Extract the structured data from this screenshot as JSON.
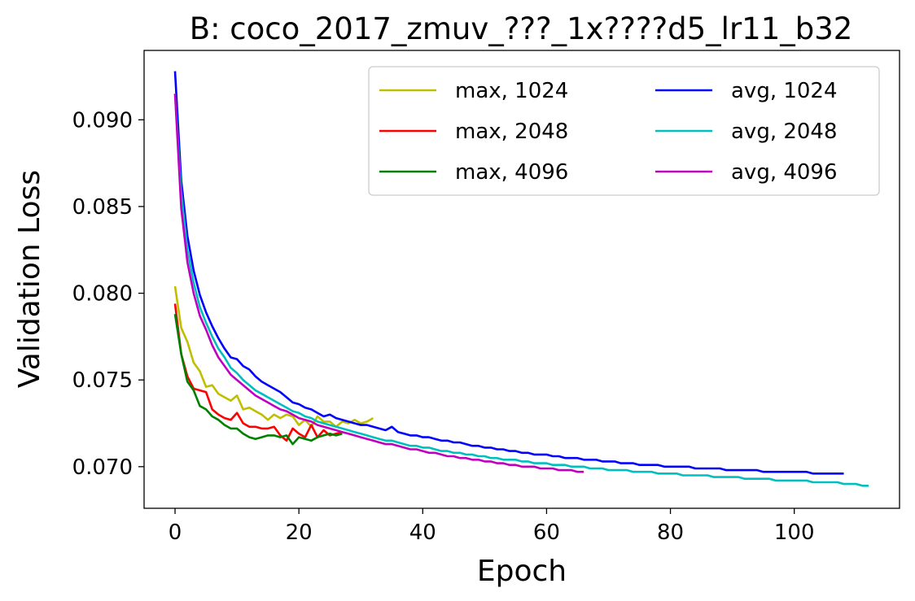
{
  "chart_data": {
    "type": "line",
    "title": "B:  coco_2017_zmuv_???_1x????d5_lr11_b32",
    "xlabel": "Epoch",
    "ylabel": "Validation Loss",
    "xlim": [
      -5,
      117
    ],
    "ylim": [
      0.0676,
      0.094
    ],
    "x_ticks": [
      0,
      20,
      40,
      60,
      80,
      100
    ],
    "x_tick_labels": [
      "0",
      "20",
      "40",
      "60",
      "80",
      "100"
    ],
    "y_ticks": [
      0.07,
      0.075,
      0.08,
      0.085,
      0.09
    ],
    "y_tick_labels": [
      "0.070",
      "0.075",
      "0.080",
      "0.085",
      "0.090"
    ],
    "grid": false,
    "legend": {
      "position": "top-right",
      "columns": 2
    },
    "series": [
      {
        "name": "max, 1024",
        "color": "#bfbf00",
        "x_start": 0,
        "values": [
          0.0804,
          0.078,
          0.0772,
          0.076,
          0.0755,
          0.0746,
          0.0747,
          0.0742,
          0.074,
          0.0738,
          0.0741,
          0.0733,
          0.0734,
          0.0732,
          0.073,
          0.0727,
          0.073,
          0.0728,
          0.073,
          0.0729,
          0.0724,
          0.0727,
          0.0723,
          0.0729,
          0.0726,
          0.0726,
          0.0723,
          0.0726,
          0.0725,
          0.0727,
          0.0725,
          0.0726,
          0.0728
        ]
      },
      {
        "name": "max, 2048",
        "color": "#ff0000",
        "x_start": 0,
        "values": [
          0.0794,
          0.0765,
          0.0752,
          0.0745,
          0.0744,
          0.0743,
          0.0733,
          0.073,
          0.0728,
          0.0727,
          0.0731,
          0.0725,
          0.0723,
          0.0723,
          0.0722,
          0.0722,
          0.0723,
          0.0718,
          0.0715,
          0.0722,
          0.0719,
          0.0717,
          0.0724,
          0.0717,
          0.0721,
          0.0718,
          0.0719,
          0.072
        ]
      },
      {
        "name": "max, 4096",
        "color": "#008000",
        "x_start": 0,
        "values": [
          0.0788,
          0.0765,
          0.0749,
          0.0744,
          0.0735,
          0.0733,
          0.0729,
          0.0727,
          0.0724,
          0.0722,
          0.0722,
          0.0719,
          0.0717,
          0.0716,
          0.0717,
          0.0718,
          0.0718,
          0.0717,
          0.0718,
          0.0713,
          0.0717,
          0.0716,
          0.0715,
          0.0717,
          0.0718,
          0.0719,
          0.0718,
          0.0719
        ]
      },
      {
        "name": "avg, 1024",
        "color": "#0000ff",
        "x_start": 0,
        "values": [
          0.0928,
          0.0865,
          0.0833,
          0.0813,
          0.0799,
          0.0789,
          0.0781,
          0.0774,
          0.0768,
          0.0763,
          0.0762,
          0.0758,
          0.0756,
          0.0752,
          0.0749,
          0.0747,
          0.0745,
          0.0743,
          0.074,
          0.0737,
          0.0736,
          0.0734,
          0.0733,
          0.0731,
          0.0729,
          0.073,
          0.0728,
          0.0727,
          0.0726,
          0.0725,
          0.0724,
          0.0724,
          0.0723,
          0.0722,
          0.0721,
          0.0723,
          0.072,
          0.0719,
          0.0718,
          0.0718,
          0.0717,
          0.0717,
          0.0716,
          0.0715,
          0.0715,
          0.0714,
          0.0714,
          0.0713,
          0.0712,
          0.0712,
          0.0711,
          0.0711,
          0.071,
          0.071,
          0.0709,
          0.0709,
          0.0708,
          0.0708,
          0.0707,
          0.0707,
          0.0707,
          0.0706,
          0.0706,
          0.0705,
          0.0705,
          0.0705,
          0.0704,
          0.0704,
          0.0704,
          0.0703,
          0.0703,
          0.0703,
          0.0702,
          0.0702,
          0.0702,
          0.0701,
          0.0701,
          0.0701,
          0.0701,
          0.07,
          0.07,
          0.07,
          0.07,
          0.07,
          0.0699,
          0.0699,
          0.0699,
          0.0699,
          0.0699,
          0.0698,
          0.0698,
          0.0698,
          0.0698,
          0.0698,
          0.0698,
          0.0697,
          0.0697,
          0.0697,
          0.0697,
          0.0697,
          0.0697,
          0.0697,
          0.0697,
          0.0696,
          0.0696,
          0.0696,
          0.0696,
          0.0696,
          0.0696
        ]
      },
      {
        "name": "avg, 2048",
        "color": "#00bfbf",
        "x_start": 0,
        "values": [
          0.0915,
          0.0858,
          0.0825,
          0.0806,
          0.0792,
          0.0783,
          0.0775,
          0.0768,
          0.0763,
          0.0757,
          0.0754,
          0.075,
          0.0747,
          0.0744,
          0.0742,
          0.074,
          0.0738,
          0.0736,
          0.0734,
          0.0732,
          0.0731,
          0.0729,
          0.0728,
          0.0726,
          0.0725,
          0.0724,
          0.0723,
          0.0722,
          0.0721,
          0.072,
          0.0719,
          0.0718,
          0.0717,
          0.0716,
          0.0715,
          0.0715,
          0.0714,
          0.0713,
          0.0712,
          0.0712,
          0.0711,
          0.0711,
          0.071,
          0.0709,
          0.0709,
          0.0708,
          0.0708,
          0.0707,
          0.0707,
          0.0706,
          0.0706,
          0.0705,
          0.0705,
          0.0704,
          0.0704,
          0.0704,
          0.0703,
          0.0703,
          0.0702,
          0.0702,
          0.0702,
          0.0701,
          0.0701,
          0.0701,
          0.07,
          0.07,
          0.07,
          0.0699,
          0.0699,
          0.0699,
          0.0698,
          0.0698,
          0.0698,
          0.0698,
          0.0697,
          0.0697,
          0.0697,
          0.0697,
          0.0696,
          0.0696,
          0.0696,
          0.0696,
          0.0695,
          0.0695,
          0.0695,
          0.0695,
          0.0695,
          0.0694,
          0.0694,
          0.0694,
          0.0694,
          0.0694,
          0.0693,
          0.0693,
          0.0693,
          0.0693,
          0.0693,
          0.0692,
          0.0692,
          0.0692,
          0.0692,
          0.0692,
          0.0692,
          0.0691,
          0.0691,
          0.0691,
          0.0691,
          0.0691,
          0.069,
          0.069,
          0.069,
          0.0689,
          0.0689
        ]
      },
      {
        "name": "avg, 4096",
        "color": "#bf00bf",
        "x_start": 0,
        "values": [
          0.0915,
          0.0849,
          0.0818,
          0.08,
          0.0787,
          0.0779,
          0.077,
          0.0763,
          0.0758,
          0.0753,
          0.075,
          0.0747,
          0.0744,
          0.0741,
          0.0739,
          0.0737,
          0.0735,
          0.0733,
          0.0732,
          0.073,
          0.0728,
          0.0727,
          0.0726,
          0.0724,
          0.0723,
          0.0722,
          0.0721,
          0.072,
          0.0719,
          0.0718,
          0.0717,
          0.0716,
          0.0715,
          0.0714,
          0.0713,
          0.0713,
          0.0712,
          0.0711,
          0.071,
          0.071,
          0.0709,
          0.0708,
          0.0708,
          0.0707,
          0.0706,
          0.0706,
          0.0705,
          0.0705,
          0.0704,
          0.0704,
          0.0703,
          0.0703,
          0.0702,
          0.0702,
          0.0701,
          0.0701,
          0.07,
          0.07,
          0.07,
          0.0699,
          0.0699,
          0.0699,
          0.0698,
          0.0698,
          0.0698,
          0.0697,
          0.0697
        ]
      }
    ]
  }
}
